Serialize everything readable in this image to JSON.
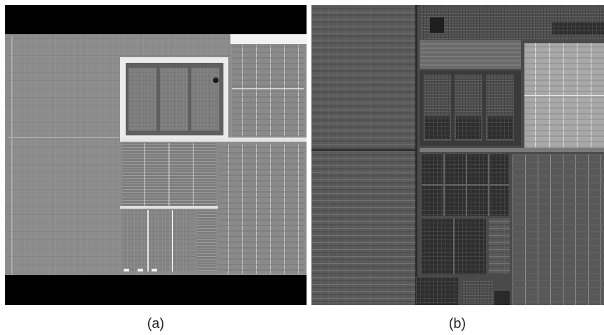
{
  "figure": {
    "panels": [
      {
        "label": "(a)",
        "image": "grayscale-chip-die-micrograph-low-contrast"
      },
      {
        "label": "(b)",
        "image": "grayscale-chip-die-micrograph-high-contrast"
      }
    ]
  }
}
